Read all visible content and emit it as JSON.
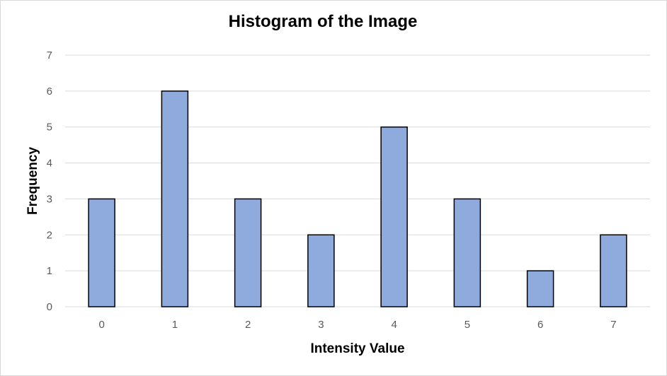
{
  "chart_data": {
    "type": "bar",
    "title": "Histogram of the Image",
    "xlabel": "Intensity Value",
    "ylabel": "Frequency",
    "categories": [
      "0",
      "1",
      "2",
      "3",
      "4",
      "5",
      "6",
      "7"
    ],
    "values": [
      3,
      6,
      3,
      2,
      5,
      3,
      1,
      2
    ],
    "ylim": [
      0,
      7
    ],
    "yticks": [
      0,
      1,
      2,
      3,
      4,
      5,
      6,
      7
    ],
    "grid": true,
    "legend": "none",
    "colors": {
      "bar_fill": "#8faadc",
      "bar_stroke": "#000000",
      "gridline": "#d9d9d9"
    }
  }
}
